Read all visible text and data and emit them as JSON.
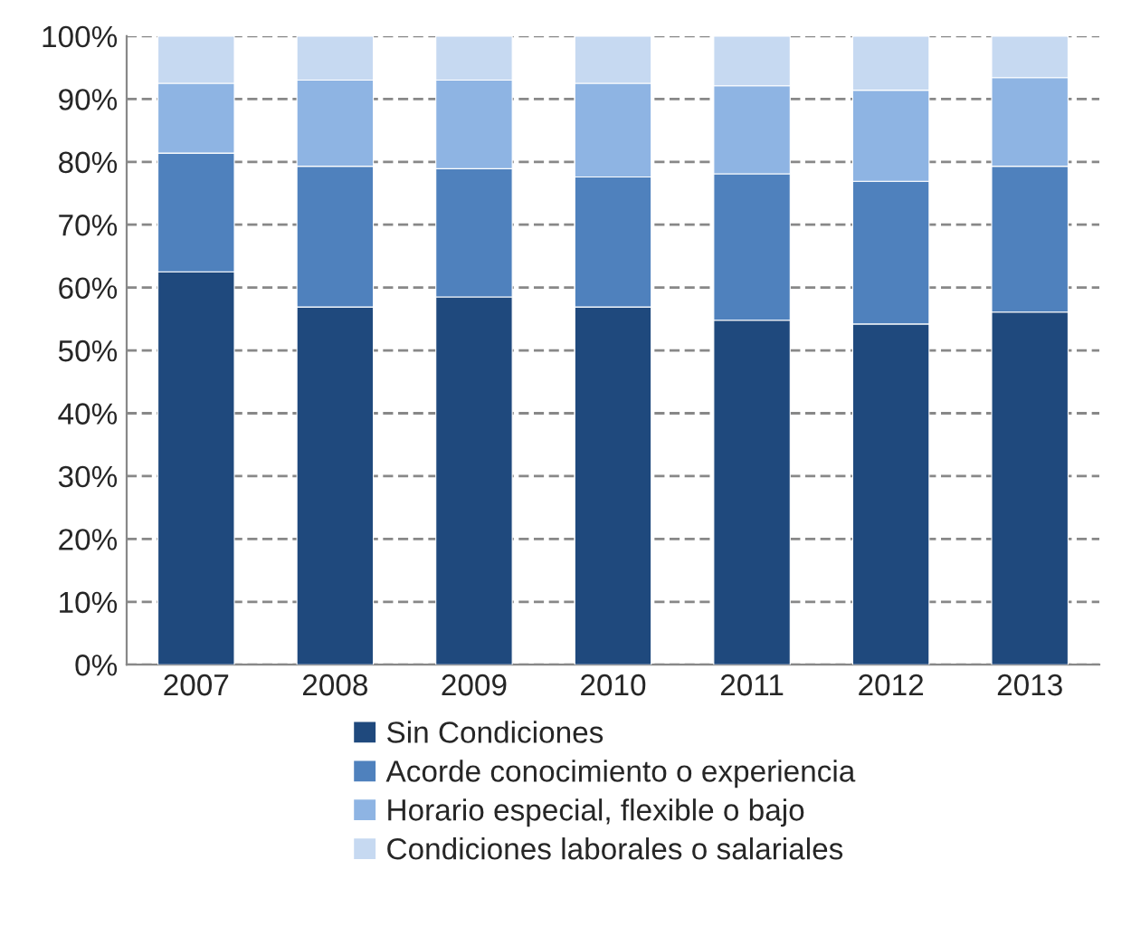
{
  "chart_data": {
    "type": "bar",
    "stacked": true,
    "categories": [
      "2007",
      "2008",
      "2009",
      "2010",
      "2011",
      "2012",
      "2013"
    ],
    "series": [
      {
        "name": "Sin Condiciones",
        "color": "#1f497d",
        "values": [
          62.5,
          56.9,
          58.5,
          56.9,
          54.8,
          54.2,
          56.1
        ]
      },
      {
        "name": "Acorde conocimiento o experiencia",
        "color": "#4f81bd",
        "values": [
          18.9,
          22.4,
          20.4,
          20.7,
          23.3,
          22.7,
          23.2
        ]
      },
      {
        "name": "Horario especial, flexible o bajo",
        "color": "#8eb4e3",
        "values": [
          11.1,
          13.7,
          14.1,
          14.9,
          14.0,
          14.5,
          14.1
        ]
      },
      {
        "name": "Condiciones laborales o salariales",
        "color": "#c6d9f1",
        "values": [
          7.5,
          7.0,
          7.0,
          7.5,
          7.9,
          8.6,
          6.6
        ]
      }
    ],
    "ylim": [
      0,
      100
    ],
    "yticks": [
      {
        "value": 0,
        "label": "0%"
      },
      {
        "value": 10,
        "label": "10%"
      },
      {
        "value": 20,
        "label": "20%"
      },
      {
        "value": 30,
        "label": "30%"
      },
      {
        "value": 40,
        "label": "40%"
      },
      {
        "value": 50,
        "label": "50%"
      },
      {
        "value": 60,
        "label": "60%"
      },
      {
        "value": 70,
        "label": "70%"
      },
      {
        "value": 80,
        "label": "80%"
      },
      {
        "value": 90,
        "label": "90%"
      },
      {
        "value": 100,
        "label": "100%"
      }
    ],
    "grid": "y",
    "line_style": "dashed",
    "legend": "bottom"
  }
}
